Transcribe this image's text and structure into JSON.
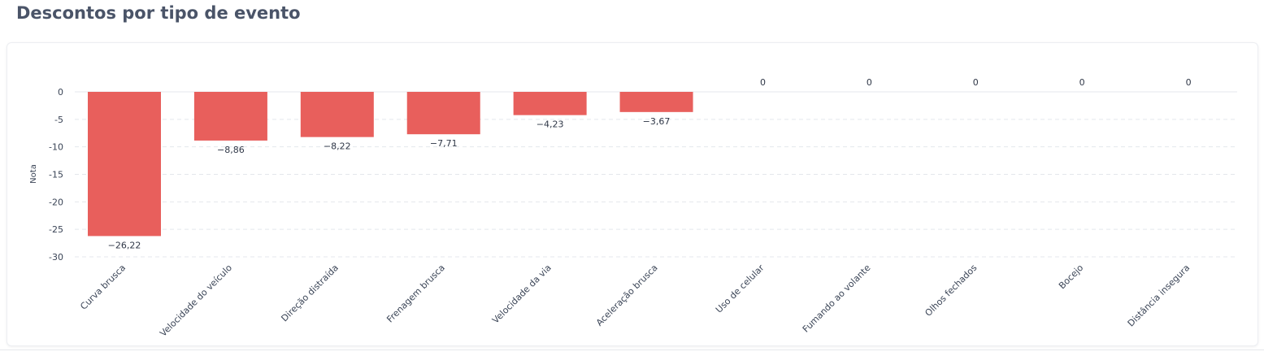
{
  "header": {
    "title": "Descontos por tipo de evento"
  },
  "chart_data": {
    "type": "bar",
    "title": "",
    "xlabel": "",
    "ylabel": "Nota",
    "ylim": [
      -30,
      0
    ],
    "yticks": [
      0,
      -5,
      -10,
      -15,
      -20,
      -25,
      -30
    ],
    "ytick_labels": [
      "0",
      "-5",
      "-10",
      "-15",
      "-20",
      "-25",
      "-30"
    ],
    "grid": true,
    "categories": [
      "Curva brusca",
      "Velocidade do veículo",
      "Direção distraída",
      "Frenagem brusca",
      "Velocidade da via",
      "Aceleração brusca",
      "Uso de celular",
      "Fumando ao volante",
      "Olhos fechados",
      "Bocejo",
      "Distância insegura"
    ],
    "values": [
      -26.22,
      -8.86,
      -8.22,
      -7.71,
      -4.23,
      -3.67,
      0,
      0,
      0,
      0,
      0
    ],
    "value_labels": [
      "−26,22",
      "−8,86",
      "−8,22",
      "−7,71",
      "−4,23",
      "−3,67",
      "0",
      "0",
      "0",
      "0",
      "0"
    ],
    "bar_color": "#e85f5c",
    "grid_color": "#e4e7ec"
  }
}
